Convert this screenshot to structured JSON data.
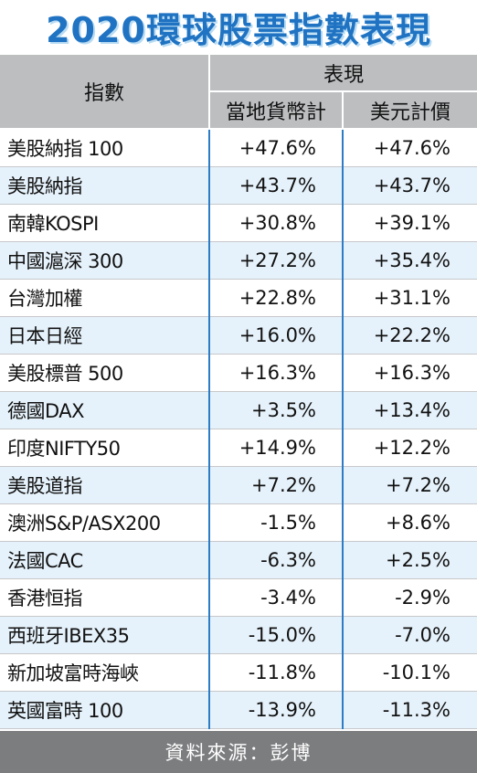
{
  "title": "2020環球股票指數表現",
  "header": {
    "index_label": "指數",
    "group_label": "表現",
    "local_label": "當地貨幣計",
    "usd_label": "美元計價"
  },
  "rows": [
    {
      "name": "美股納指 100",
      "local": "+47.6%",
      "usd": "+47.6%"
    },
    {
      "name": "美股納指",
      "local": "+43.7%",
      "usd": "+43.7%"
    },
    {
      "name": "南韓KOSPI",
      "local": "+30.8%",
      "usd": "+39.1%"
    },
    {
      "name": "中國滬深 300",
      "local": "+27.2%",
      "usd": "+35.4%"
    },
    {
      "name": "台灣加權",
      "local": "+22.8%",
      "usd": "+31.1%"
    },
    {
      "name": "日本日經",
      "local": "+16.0%",
      "usd": "+22.2%"
    },
    {
      "name": "美股標普 500",
      "local": "+16.3%",
      "usd": "+16.3%"
    },
    {
      "name": "德國DAX",
      "local": "+3.5%",
      "usd": "+13.4%"
    },
    {
      "name": "印度NIFTY50",
      "local": "+14.9%",
      "usd": "+12.2%"
    },
    {
      "name": "美股道指",
      "local": "+7.2%",
      "usd": "+7.2%"
    },
    {
      "name": "澳洲S&P/ASX200",
      "local": "-1.5%",
      "usd": "+8.6%"
    },
    {
      "name": "法國CAC",
      "local": "-6.3%",
      "usd": "+2.5%"
    },
    {
      "name": "香港恒指",
      "local": "-3.4%",
      "usd": "-2.9%"
    },
    {
      "name": "西班牙IBEX35",
      "local": "-15.0%",
      "usd": "-7.0%"
    },
    {
      "name": "新加坡富時海峽",
      "local": "-11.8%",
      "usd": "-10.1%"
    },
    {
      "name": "英國富時 100",
      "local": "-13.9%",
      "usd": "-11.3%"
    }
  ],
  "footer": "資料來源：彭博",
  "colors": {
    "title": "#1f73c2",
    "header_bg": "#bcbec0",
    "alt_row_bg": "#e6f2fb",
    "column_divider": "#2d7cc6",
    "footer_bg": "#7c7d7f"
  }
}
